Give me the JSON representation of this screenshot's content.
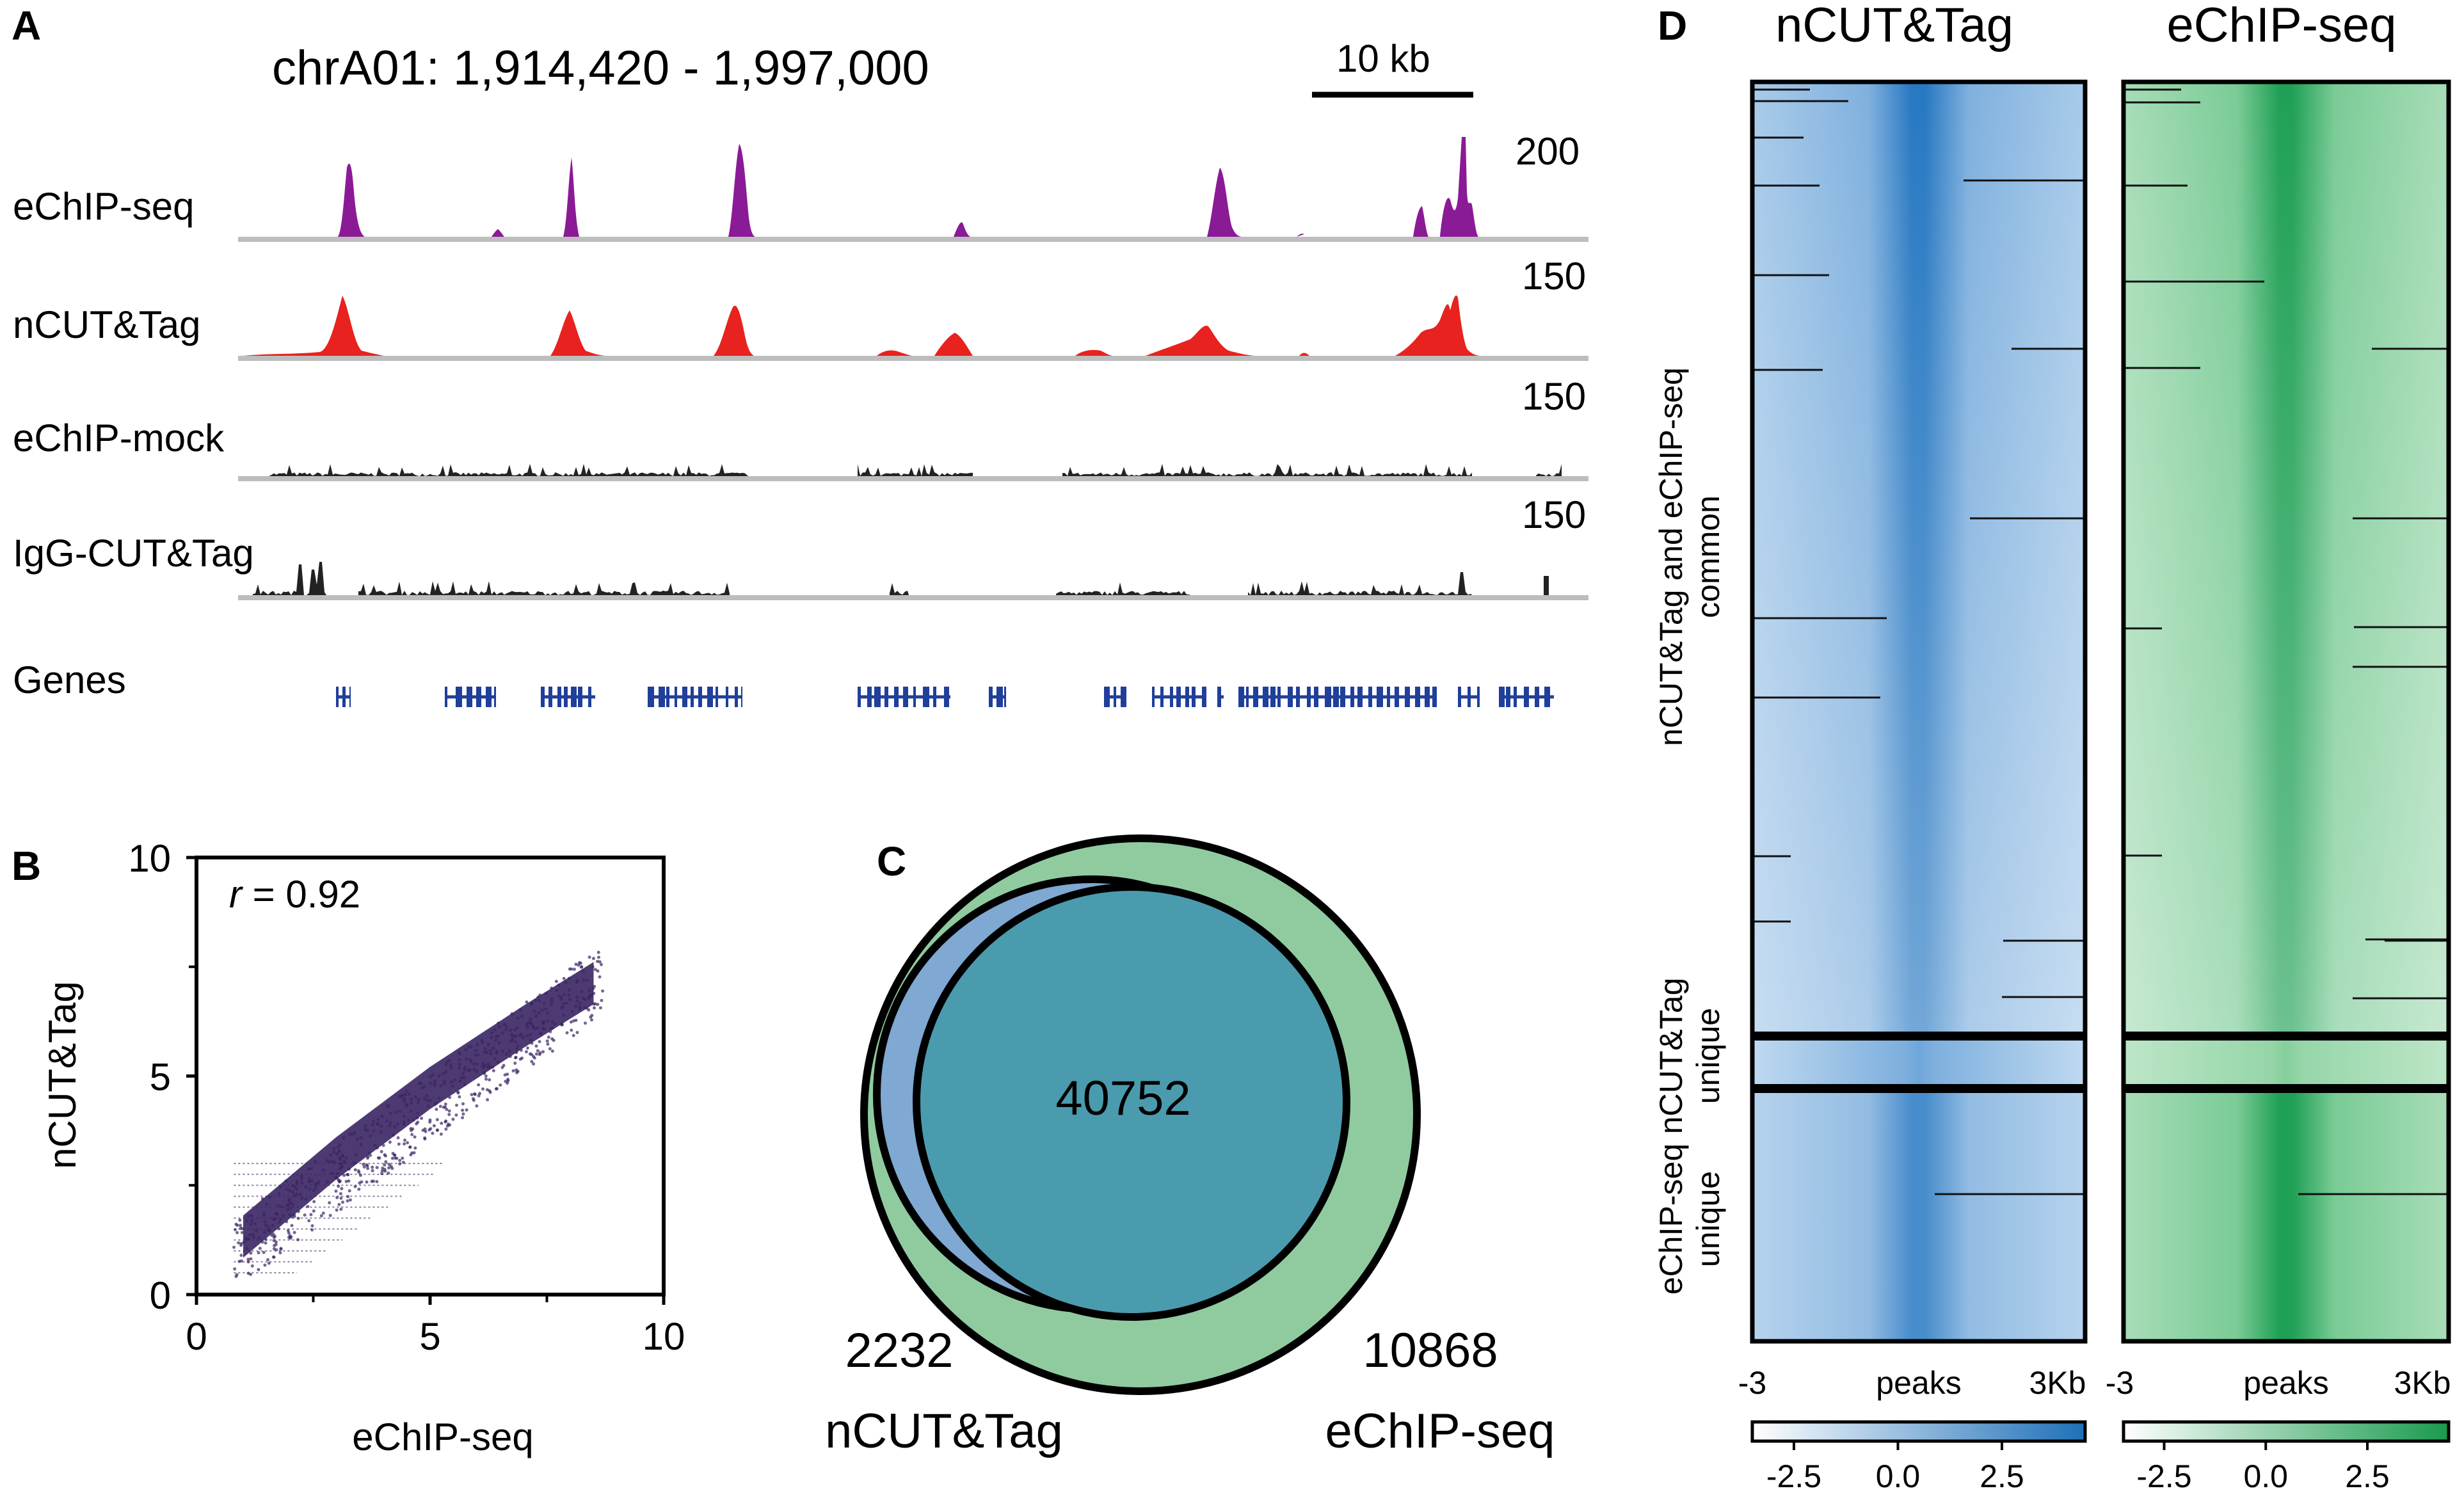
{
  "panels": {
    "a": "A",
    "b": "B",
    "c": "C",
    "d": "D"
  },
  "colors": {
    "echip": "#8B1A96",
    "ncut": "#E8221E",
    "background": "#222222",
    "genes": "#1F3F9A",
    "track_axis": "#BDBDBD",
    "scatter": "#3A2563",
    "venn_ncut": "#7FA8D2",
    "venn_overlap": "#4B9BAE",
    "venn_echip": "#90CBA0",
    "heat_blue": "#1E73BE",
    "heat_green": "#1FA055"
  },
  "panel_a": {
    "region": "chrA01: 1,914,420 - 1,997,000",
    "scale_label": "10 kb",
    "gene_label": "Genes",
    "tracks": [
      {
        "name": "eChIP-seq",
        "scale": "200"
      },
      {
        "name": "nCUT&Tag",
        "scale": "150"
      },
      {
        "name": "eChIP-mock",
        "scale": "150"
      },
      {
        "name": "IgG-CUT&Tag",
        "scale": "150"
      }
    ]
  },
  "chart_data": [
    {
      "type": "scatter",
      "title": "",
      "xlabel": "eChIP-seq",
      "ylabel": "nCUT&Tag",
      "xlim": [
        0,
        10
      ],
      "ylim": [
        0,
        10
      ],
      "xticks": [
        "0",
        "5",
        "10"
      ],
      "yticks": [
        "0",
        "5",
        "10"
      ],
      "annotation": {
        "prefix": "r",
        "text": " = 0.92"
      },
      "density_trend": {
        "x": [
          1,
          3,
          5,
          7,
          8.5
        ],
        "y": [
          1.4,
          3.2,
          4.8,
          6.2,
          7.2
        ]
      }
    },
    {
      "type": "venn",
      "sets": [
        {
          "name": "nCUT&Tag",
          "unique": "2232"
        },
        {
          "name": "eChIP-seq",
          "unique": "10868"
        }
      ],
      "overlap": "40752"
    },
    {
      "type": "heatmap",
      "series": [
        {
          "name": "nCUT&Tag"
        },
        {
          "name": "eChIP-seq"
        }
      ],
      "row_groups": [
        {
          "label_line1": "nCUT&Tag and eChIP-seq",
          "label_line2": "common"
        },
        {
          "label_line1": "nCUT&Tag",
          "label_line2": "unique"
        },
        {
          "label_line1": "eChIP-seq",
          "label_line2": "unique"
        }
      ],
      "x_ticks": [
        "-3",
        "peaks",
        "3Kb"
      ],
      "colorbar_ticks": [
        "-2.5",
        "0.0",
        "2.5"
      ],
      "colorbar_range": [
        -3.5,
        4.5
      ]
    }
  ]
}
